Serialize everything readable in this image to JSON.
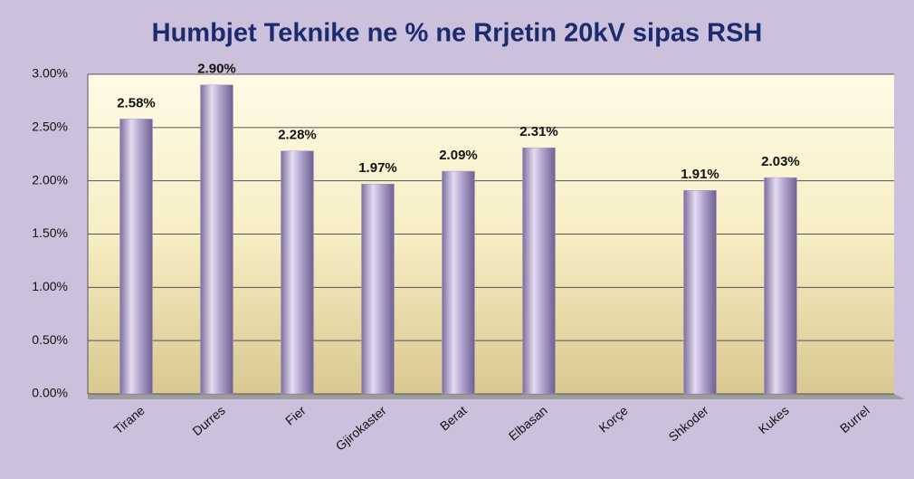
{
  "chart_data": {
    "type": "bar",
    "title": "Humbjet Teknike ne % ne Rrjetin 20kV sipas RSH",
    "categories": [
      "Tirane",
      "Durres",
      "Fier",
      "Gjirokaster",
      "Berat",
      "Elbasan",
      "Korçe",
      "Shkoder",
      "Kukes",
      "Burrel"
    ],
    "values": [
      2.58,
      2.9,
      2.28,
      1.97,
      2.09,
      2.31,
      null,
      1.91,
      2.03,
      null
    ],
    "value_labels": [
      "2.58%",
      "2.90%",
      "2.28%",
      "1.97%",
      "2.09%",
      "2.31%",
      null,
      "1.91%",
      "2.03%",
      null
    ],
    "color": "#a898c4",
    "ylim": [
      0,
      3
    ],
    "yticks": [
      {
        "value": 0,
        "label": "0.00%"
      },
      {
        "value": 0.5,
        "label": "0.50%"
      },
      {
        "value": 1,
        "label": "1.00%"
      },
      {
        "value": 1.5,
        "label": "1.50%"
      },
      {
        "value": 2,
        "label": "2.00%"
      },
      {
        "value": 2.5,
        "label": "2.50%"
      },
      {
        "value": 3,
        "label": "3.00%"
      }
    ],
    "grid": true
  }
}
